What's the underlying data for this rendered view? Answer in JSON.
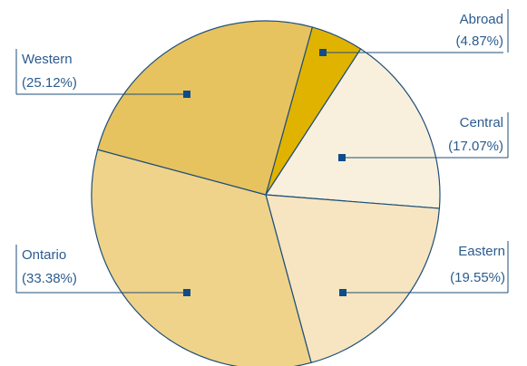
{
  "chart_data": {
    "type": "pie",
    "title": "",
    "slices": [
      {
        "name": "Abroad",
        "value": 4.87,
        "label": "(4.87%)",
        "color": "#e0b300"
      },
      {
        "name": "Central",
        "value": 17.07,
        "label": "(17.07%)",
        "color": "#f8f0dc"
      },
      {
        "name": "Eastern",
        "value": 19.55,
        "label": "(19.55%)",
        "color": "#f6e5c0"
      },
      {
        "name": "Ontario",
        "value": 33.38,
        "label": "(33.38%)",
        "color": "#efd38a"
      },
      {
        "name": "Western",
        "value": 25.12,
        "label": "(25.12%)",
        "color": "#e6c35f"
      }
    ]
  }
}
